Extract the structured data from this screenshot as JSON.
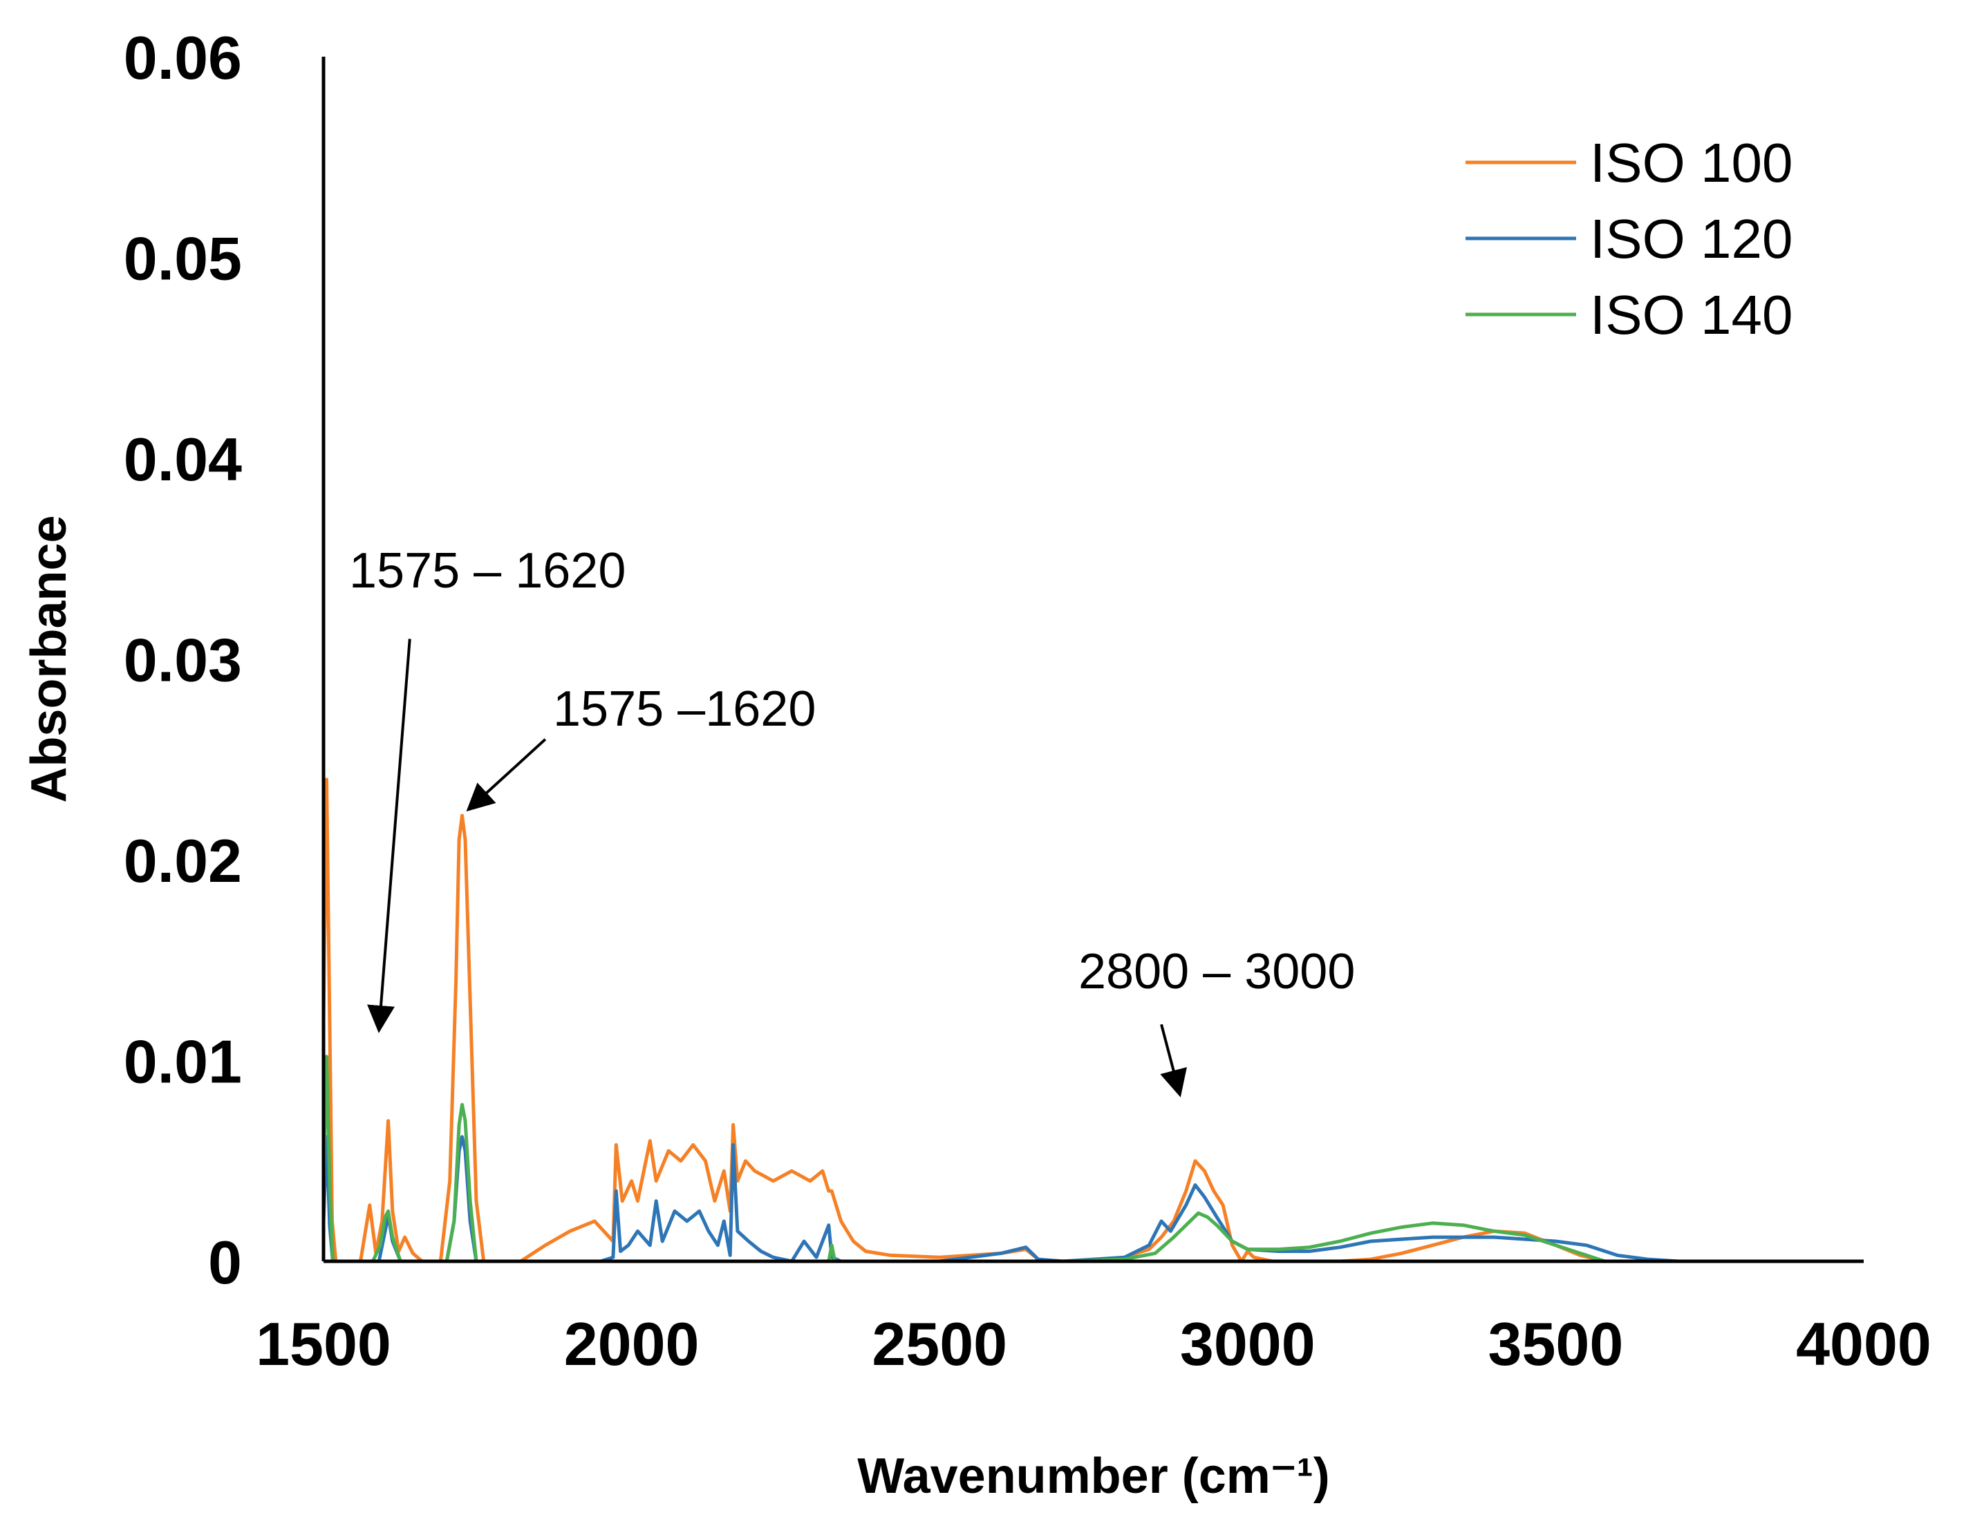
{
  "chart_data": {
    "type": "line",
    "title": "",
    "xlabel": "Wavenumber (cm⁻¹)",
    "ylabel": "Absorbance",
    "xlim": [
      1500,
      4000
    ],
    "ylim": [
      0,
      0.06
    ],
    "x_ticks": [
      1500,
      2000,
      2500,
      3000,
      3500,
      4000
    ],
    "y_ticks": [
      "0",
      "0.01",
      "0.02",
      "0.03",
      "0.04",
      "0.05",
      "0.06"
    ],
    "legend_position": "top-right",
    "series": [
      {
        "name": "ISO 100",
        "color": "#F58025",
        "points": [
          [
            1500,
            0.012
          ],
          [
            1505,
            0.024
          ],
          [
            1510,
            0.012
          ],
          [
            1514,
            0.002
          ],
          [
            1520,
            0
          ],
          [
            1560,
            0
          ],
          [
            1575,
            0.0028
          ],
          [
            1585,
            0.0004
          ],
          [
            1595,
            0.002
          ],
          [
            1605,
            0.007
          ],
          [
            1612,
            0.0025
          ],
          [
            1622,
            0.0005
          ],
          [
            1632,
            0.0012
          ],
          [
            1645,
            0.0004
          ],
          [
            1660,
            0
          ],
          [
            1690,
            0
          ],
          [
            1705,
            0.004
          ],
          [
            1715,
            0.014
          ],
          [
            1720,
            0.021
          ],
          [
            1725,
            0.0222
          ],
          [
            1730,
            0.021
          ],
          [
            1738,
            0.013
          ],
          [
            1748,
            0.003
          ],
          [
            1760,
            0
          ],
          [
            1820,
            0
          ],
          [
            1860,
            0.0008
          ],
          [
            1900,
            0.0015
          ],
          [
            1940,
            0.002
          ],
          [
            1970,
            0.001
          ],
          [
            1975,
            0.0058
          ],
          [
            1985,
            0.003
          ],
          [
            2000,
            0.004
          ],
          [
            2010,
            0.003
          ],
          [
            2030,
            0.006
          ],
          [
            2040,
            0.004
          ],
          [
            2060,
            0.0055
          ],
          [
            2080,
            0.005
          ],
          [
            2100,
            0.0058
          ],
          [
            2120,
            0.005
          ],
          [
            2135,
            0.003
          ],
          [
            2150,
            0.0045
          ],
          [
            2160,
            0.0025
          ],
          [
            2165,
            0.0068
          ],
          [
            2172,
            0.004
          ],
          [
            2185,
            0.005
          ],
          [
            2200,
            0.0045
          ],
          [
            2230,
            0.004
          ],
          [
            2260,
            0.0045
          ],
          [
            2290,
            0.004
          ],
          [
            2310,
            0.0045
          ],
          [
            2320,
            0.0035
          ],
          [
            2325,
            0.0035
          ],
          [
            2340,
            0.002
          ],
          [
            2360,
            0.001
          ],
          [
            2380,
            0.0005
          ],
          [
            2420,
            0.0003
          ],
          [
            2500,
            0.0002
          ],
          [
            2600,
            0.0004
          ],
          [
            2640,
            0.0006
          ],
          [
            2660,
            0.0001
          ],
          [
            2700,
            0
          ],
          [
            2760,
            0
          ],
          [
            2800,
            0.0002
          ],
          [
            2840,
            0.0006
          ],
          [
            2860,
            0.0012
          ],
          [
            2880,
            0.002
          ],
          [
            2900,
            0.0035
          ],
          [
            2915,
            0.005
          ],
          [
            2930,
            0.0045
          ],
          [
            2945,
            0.0035
          ],
          [
            2960,
            0.0028
          ],
          [
            2975,
            0.0008
          ],
          [
            2990,
            0
          ],
          [
            3000,
            0.0005
          ],
          [
            3010,
            0.0002
          ],
          [
            3040,
            0
          ],
          [
            3150,
            0
          ],
          [
            3200,
            0.0001
          ],
          [
            3250,
            0.0004
          ],
          [
            3300,
            0.0008
          ],
          [
            3350,
            0.0012
          ],
          [
            3400,
            0.0015
          ],
          [
            3450,
            0.0014
          ],
          [
            3500,
            0.0008
          ],
          [
            3540,
            0.0003
          ],
          [
            3580,
            0
          ]
        ]
      },
      {
        "name": "ISO 120",
        "color": "#2E75B6",
        "points": [
          [
            1500,
            0.002
          ],
          [
            1505,
            0.0062
          ],
          [
            1510,
            0.0018
          ],
          [
            1515,
            0
          ],
          [
            1560,
            0
          ],
          [
            1590,
            0
          ],
          [
            1600,
            0.0015
          ],
          [
            1605,
            0.0023
          ],
          [
            1612,
            0.001
          ],
          [
            1625,
            0
          ],
          [
            1700,
            0
          ],
          [
            1712,
            0.002
          ],
          [
            1720,
            0.0055
          ],
          [
            1725,
            0.0062
          ],
          [
            1730,
            0.0055
          ],
          [
            1738,
            0.002
          ],
          [
            1748,
            0
          ],
          [
            1950,
            0
          ],
          [
            1970,
            0.0002
          ],
          [
            1975,
            0.0035
          ],
          [
            1982,
            0.0005
          ],
          [
            1995,
            0.0008
          ],
          [
            2010,
            0.0015
          ],
          [
            2030,
            0.0008
          ],
          [
            2040,
            0.003
          ],
          [
            2050,
            0.001
          ],
          [
            2070,
            0.0025
          ],
          [
            2090,
            0.002
          ],
          [
            2110,
            0.0025
          ],
          [
            2125,
            0.0015
          ],
          [
            2140,
            0.0008
          ],
          [
            2150,
            0.002
          ],
          [
            2160,
            0.0003
          ],
          [
            2165,
            0.0058
          ],
          [
            2172,
            0.0015
          ],
          [
            2190,
            0.001
          ],
          [
            2210,
            0.0005
          ],
          [
            2230,
            0.0002
          ],
          [
            2260,
            0
          ],
          [
            2280,
            0.001
          ],
          [
            2300,
            0.0002
          ],
          [
            2320,
            0.0018
          ],
          [
            2325,
            0.0002
          ],
          [
            2340,
            0
          ],
          [
            2500,
            0
          ],
          [
            2600,
            0.0004
          ],
          [
            2640,
            0.0007
          ],
          [
            2660,
            0.0001
          ],
          [
            2700,
            0
          ],
          [
            2800,
            0.0002
          ],
          [
            2840,
            0.0008
          ],
          [
            2860,
            0.002
          ],
          [
            2875,
            0.0015
          ],
          [
            2900,
            0.0028
          ],
          [
            2915,
            0.0038
          ],
          [
            2930,
            0.0032
          ],
          [
            2950,
            0.0022
          ],
          [
            2975,
            0.001
          ],
          [
            3000,
            0.0006
          ],
          [
            3050,
            0.0005
          ],
          [
            3100,
            0.0005
          ],
          [
            3150,
            0.0007
          ],
          [
            3200,
            0.001
          ],
          [
            3300,
            0.0012
          ],
          [
            3400,
            0.0012
          ],
          [
            3500,
            0.001
          ],
          [
            3550,
            0.0008
          ],
          [
            3600,
            0.0003
          ],
          [
            3650,
            0.0001
          ],
          [
            3700,
            0
          ],
          [
            4000,
            0
          ]
        ]
      },
      {
        "name": "ISO 140",
        "color": "#4CAF50",
        "points": [
          [
            1500,
            0.004
          ],
          [
            1505,
            0.0102
          ],
          [
            1510,
            0.004
          ],
          [
            1515,
            0
          ],
          [
            1580,
            0
          ],
          [
            1592,
            0.0008
          ],
          [
            1600,
            0.0022
          ],
          [
            1605,
            0.0025
          ],
          [
            1612,
            0.0012
          ],
          [
            1625,
            0
          ],
          [
            1700,
            0
          ],
          [
            1712,
            0.002
          ],
          [
            1720,
            0.0068
          ],
          [
            1725,
            0.0078
          ],
          [
            1730,
            0.007
          ],
          [
            1738,
            0.003
          ],
          [
            1748,
            0
          ],
          [
            2320,
            0
          ],
          [
            2325,
            0.0008
          ],
          [
            2330,
            0
          ],
          [
            2700,
            0
          ],
          [
            2800,
            0.0001
          ],
          [
            2850,
            0.0004
          ],
          [
            2880,
            0.0012
          ],
          [
            2900,
            0.0018
          ],
          [
            2920,
            0.0024
          ],
          [
            2935,
            0.0022
          ],
          [
            2950,
            0.0018
          ],
          [
            2975,
            0.001
          ],
          [
            3000,
            0.0006
          ],
          [
            3050,
            0.0006
          ],
          [
            3100,
            0.0007
          ],
          [
            3150,
            0.001
          ],
          [
            3200,
            0.0014
          ],
          [
            3250,
            0.0017
          ],
          [
            3300,
            0.0019
          ],
          [
            3350,
            0.0018
          ],
          [
            3400,
            0.0015
          ],
          [
            3450,
            0.0013
          ],
          [
            3500,
            0.0008
          ],
          [
            3550,
            0.0003
          ],
          [
            3580,
            0
          ]
        ]
      }
    ],
    "annotations": [
      {
        "text": "1575 – 1620",
        "arrow_to": [
          1590,
          0.0115
        ],
        "arrow_from": [
          1640,
          0.031
        ]
      },
      {
        "text": "1575 –1620",
        "arrow_to": [
          1735,
          0.0225
        ],
        "arrow_from": [
          1860,
          0.026
        ]
      },
      {
        "text": "2800 – 3000",
        "arrow_to": [
          2890,
          0.0083
        ],
        "arrow_from": [
          2860,
          0.0118
        ]
      }
    ]
  }
}
